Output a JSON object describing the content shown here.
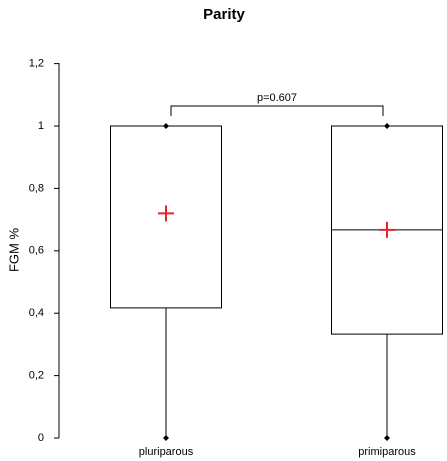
{
  "chart_data": {
    "type": "box",
    "title": "Parity",
    "y_label": "FGM %",
    "categories": [
      "pluriparous",
      "primiparous"
    ],
    "boxes": [
      {
        "min": 0,
        "q1": 0.417,
        "median": 1,
        "q3": 1,
        "max": 1,
        "mean": 0.72
      },
      {
        "min": 0,
        "q1": 0.333,
        "median": 0.667,
        "q3": 1,
        "max": 1,
        "mean": 0.667
      }
    ],
    "mean_color": "#e8212b",
    "annotation": "p=0.607",
    "ylim": [
      0,
      1.2
    ],
    "yticks": [
      0,
      {
        "value": 0.2,
        "label": "0,2"
      },
      {
        "value": 0.4,
        "label": "0,4"
      },
      {
        "value": 0.6,
        "label": "0,6"
      },
      {
        "value": 0.8,
        "label": "0,8"
      },
      1,
      {
        "value": 1.2,
        "label": "1,2"
      }
    ]
  }
}
